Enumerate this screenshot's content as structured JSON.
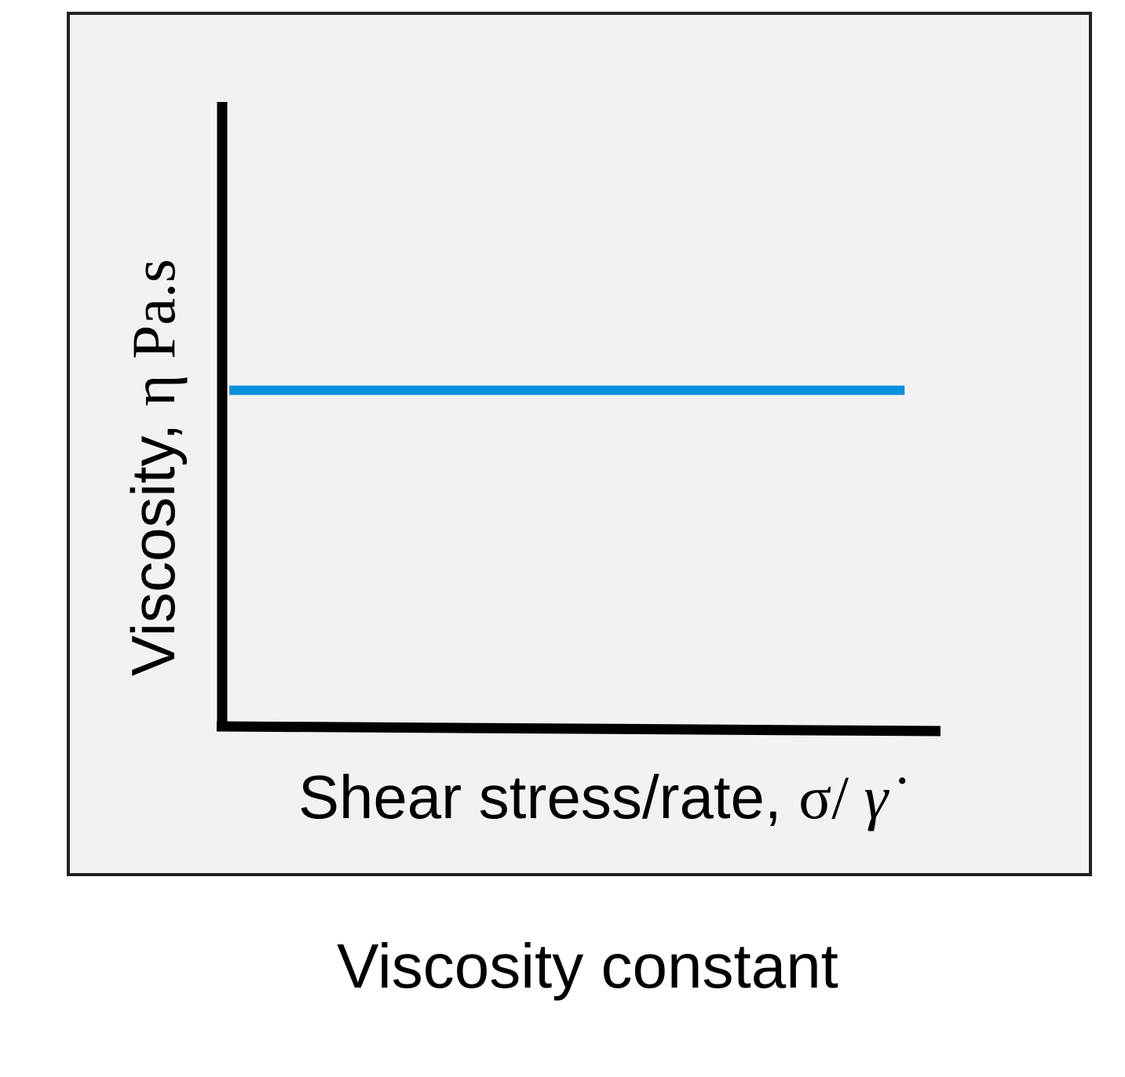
{
  "caption": "Viscosity constant",
  "colors": {
    "panel": "#f2f2f2",
    "frame": "#222222",
    "axis": "#000000",
    "series": "#0a8fdc"
  },
  "chart_data": {
    "type": "line",
    "xlabel": {
      "text": "Shear stress/rate, ",
      "symbol": "σ/ ",
      "rate_symbol": "γ̇"
    },
    "ylabel": {
      "text": "Viscosity, ",
      "symbol": "η  Pa.s"
    },
    "grid": false,
    "ticks": false,
    "xlim": [
      0,
      1
    ],
    "ylim": [
      0,
      1
    ],
    "series": [
      {
        "x": [
          0.01,
          0.95
        ],
        "y": [
          0.54,
          0.54
        ]
      }
    ]
  }
}
